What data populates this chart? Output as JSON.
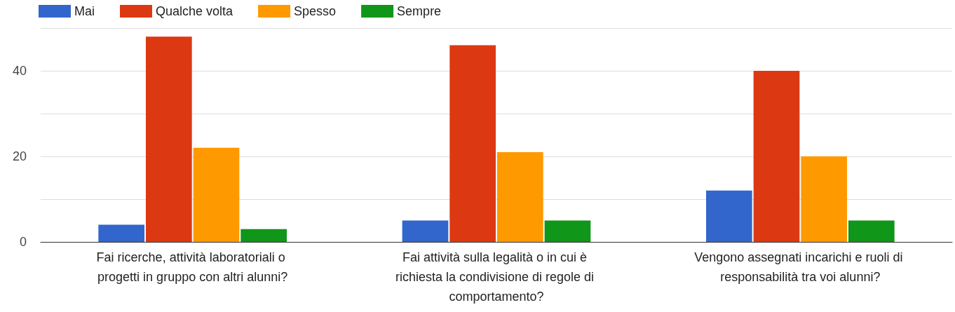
{
  "chart_data": {
    "type": "bar",
    "categories": [
      "Fai ricerche, attività laboratoriali o progetti in gruppo con altri alunni?",
      "Fai attività sulla legalità o in cui è richiesta la condivisione di regole di comportamento?",
      "Vengono assegnati incarichi e ruoli di responsabilità tra voi alunni?"
    ],
    "series": [
      {
        "name": "Mai",
        "color": "#3366cc",
        "values": [
          4,
          5,
          12
        ]
      },
      {
        "name": "Qualche volta",
        "color": "#dc3912",
        "values": [
          48,
          46,
          40
        ]
      },
      {
        "name": "Spesso",
        "color": "#ff9900",
        "values": [
          22,
          21,
          20
        ]
      },
      {
        "name": "Sempre",
        "color": "#109618",
        "values": [
          3,
          5,
          5
        ]
      }
    ],
    "ylim": [
      0,
      50
    ],
    "yticks": [
      0,
      {
        "value": 10,
        "label": null
      },
      20,
      {
        "value": 30,
        "label": null
      },
      40,
      {
        "value": 50,
        "label": null
      }
    ],
    "grid": "y",
    "legend": "top left"
  }
}
